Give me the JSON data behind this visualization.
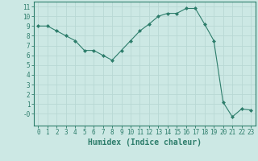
{
  "x": [
    0,
    1,
    2,
    3,
    4,
    5,
    6,
    7,
    8,
    9,
    10,
    11,
    12,
    13,
    14,
    15,
    16,
    17,
    18,
    19,
    20,
    21,
    22,
    23
  ],
  "y": [
    9.0,
    9.0,
    8.5,
    8.0,
    7.5,
    6.5,
    6.5,
    6.0,
    5.5,
    6.5,
    7.5,
    8.5,
    9.2,
    10.0,
    10.3,
    10.3,
    10.8,
    10.8,
    9.2,
    7.5,
    1.2,
    -0.3,
    0.5,
    0.4
  ],
  "xlabel": "Humidex (Indice chaleur)",
  "xlim": [
    -0.5,
    23.5
  ],
  "ylim": [
    -1.2,
    11.5
  ],
  "yticks": [
    0,
    1,
    2,
    3,
    4,
    5,
    6,
    7,
    8,
    9,
    10,
    11
  ],
  "ytick_labels": [
    "-0",
    "1",
    "2",
    "3",
    "4",
    "5",
    "6",
    "7",
    "8",
    "9",
    "10",
    "11"
  ],
  "xticks": [
    0,
    1,
    2,
    3,
    4,
    5,
    6,
    7,
    8,
    9,
    10,
    11,
    12,
    13,
    14,
    15,
    16,
    17,
    18,
    19,
    20,
    21,
    22,
    23
  ],
  "line_color": "#2d7d6b",
  "bg_color": "#cce8e4",
  "grid_color": "#b8d8d4",
  "axis_color": "#2d7d6b",
  "tick_label_color": "#2d7d6b",
  "xlabel_color": "#2d7d6b",
  "label_fontsize": 7,
  "tick_fontsize": 5.5
}
